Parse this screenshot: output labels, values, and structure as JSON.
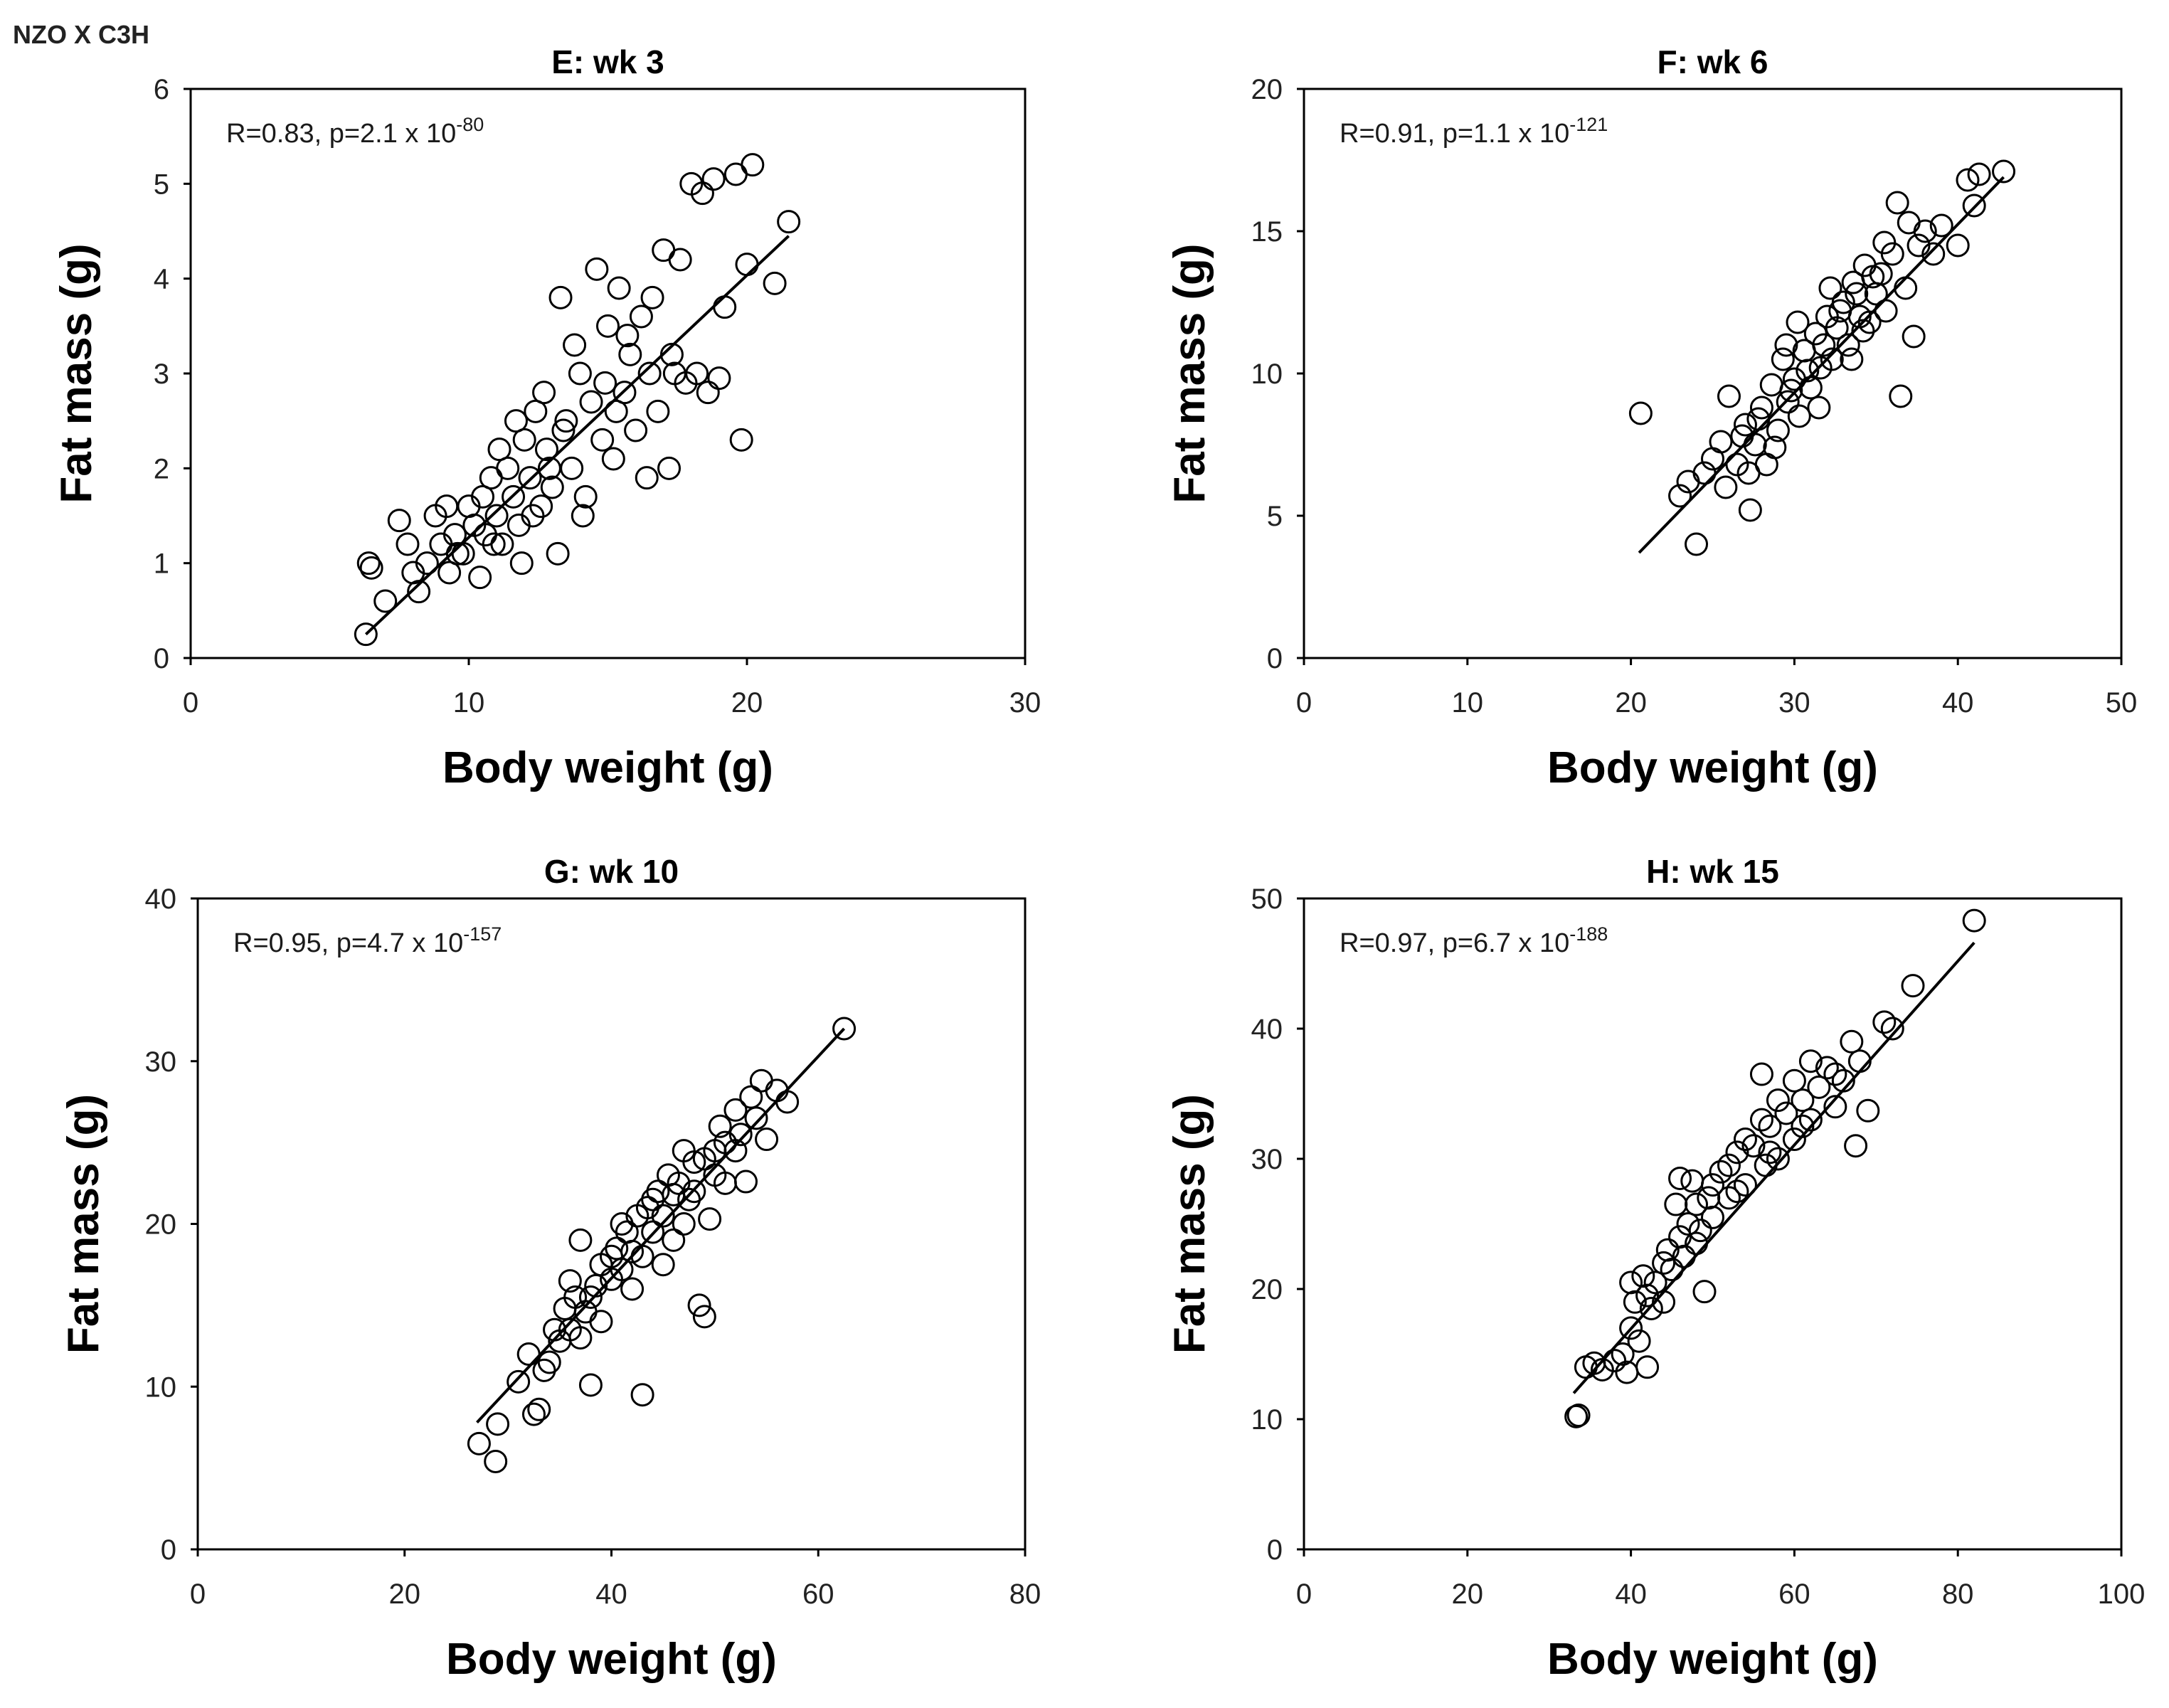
{
  "figure": {
    "label": "NZO X C3H"
  },
  "chart_data": [
    {
      "type": "scatter",
      "panel_id": "E",
      "title": "E: wk 3",
      "xlabel": "Body weight (g)",
      "ylabel": "Fat mass (g)",
      "xlim": [
        0,
        30
      ],
      "ylim": [
        0,
        6
      ],
      "xticks": [
        0,
        10,
        20,
        30
      ],
      "yticks": [
        0,
        1,
        2,
        3,
        4,
        5,
        6
      ],
      "annotation": {
        "prefix": "R=0.83, p=2.1 x 10",
        "exponent": "-80"
      },
      "fit_line": {
        "x": [
          6.3,
          21.5
        ],
        "y": [
          0.25,
          4.45
        ]
      },
      "points": [
        [
          6.3,
          0.25
        ],
        [
          6.4,
          1.0
        ],
        [
          6.5,
          0.95
        ],
        [
          7.0,
          0.6
        ],
        [
          7.5,
          1.45
        ],
        [
          7.8,
          1.2
        ],
        [
          8.2,
          0.7
        ],
        [
          8.5,
          1.0
        ],
        [
          8.8,
          1.5
        ],
        [
          9.0,
          1.2
        ],
        [
          9.3,
          0.9
        ],
        [
          9.5,
          1.3
        ],
        [
          9.8,
          1.1
        ],
        [
          10.0,
          1.6
        ],
        [
          10.2,
          1.4
        ],
        [
          10.4,
          0.85
        ],
        [
          10.6,
          1.3
        ],
        [
          10.8,
          1.9
        ],
        [
          11.0,
          1.5
        ],
        [
          11.2,
          1.2
        ],
        [
          11.4,
          2.0
        ],
        [
          11.6,
          1.7
        ],
        [
          11.8,
          1.4
        ],
        [
          12.0,
          2.3
        ],
        [
          12.2,
          1.9
        ],
        [
          12.4,
          2.6
        ],
        [
          12.6,
          1.6
        ],
        [
          12.8,
          2.2
        ],
        [
          13.0,
          1.8
        ],
        [
          13.2,
          1.1
        ],
        [
          13.3,
          3.8
        ],
        [
          13.5,
          2.5
        ],
        [
          13.7,
          2.0
        ],
        [
          14.0,
          3.0
        ],
        [
          14.2,
          1.7
        ],
        [
          14.4,
          2.7
        ],
        [
          14.6,
          4.1
        ],
        [
          14.8,
          2.3
        ],
        [
          15.0,
          3.5
        ],
        [
          15.2,
          2.1
        ],
        [
          15.4,
          3.9
        ],
        [
          15.6,
          2.8
        ],
        [
          15.8,
          3.2
        ],
        [
          16.0,
          2.4
        ],
        [
          16.2,
          3.6
        ],
        [
          16.4,
          1.9
        ],
        [
          16.6,
          3.8
        ],
        [
          16.8,
          2.6
        ],
        [
          17.0,
          4.3
        ],
        [
          17.2,
          2.0
        ],
        [
          17.4,
          3.0
        ],
        [
          17.6,
          4.2
        ],
        [
          17.8,
          2.9
        ],
        [
          18.0,
          5.0
        ],
        [
          18.2,
          3.0
        ],
        [
          18.4,
          4.9
        ],
        [
          18.6,
          2.8
        ],
        [
          18.8,
          5.05
        ],
        [
          19.0,
          2.95
        ],
        [
          19.2,
          3.7
        ],
        [
          19.6,
          5.1
        ],
        [
          19.8,
          2.3
        ],
        [
          20.0,
          4.15
        ],
        [
          20.2,
          5.2
        ],
        [
          21.0,
          3.95
        ],
        [
          21.5,
          4.6
        ],
        [
          9.6,
          1.1
        ],
        [
          10.5,
          1.7
        ],
        [
          11.1,
          2.2
        ],
        [
          11.9,
          1.0
        ],
        [
          12.3,
          1.5
        ],
        [
          12.7,
          2.8
        ],
        [
          13.4,
          2.4
        ],
        [
          14.1,
          1.5
        ],
        [
          14.9,
          2.9
        ],
        [
          15.7,
          3.4
        ],
        [
          16.5,
          3.0
        ],
        [
          17.3,
          3.2
        ],
        [
          8.0,
          0.9
        ],
        [
          9.2,
          1.6
        ],
        [
          10.9,
          1.2
        ],
        [
          11.7,
          2.5
        ],
        [
          12.9,
          2.0
        ],
        [
          13.8,
          3.3
        ],
        [
          15.3,
          2.6
        ]
      ]
    },
    {
      "type": "scatter",
      "panel_id": "F",
      "title": "F: wk 6",
      "xlabel": "Body weight (g)",
      "ylabel": "Fat mass (g)",
      "xlim": [
        0,
        50
      ],
      "ylim": [
        0,
        20
      ],
      "xticks": [
        0,
        10,
        20,
        30,
        40,
        50
      ],
      "yticks": [
        0,
        5,
        10,
        15,
        20
      ],
      "annotation": {
        "prefix": "R=0.91, p=1.1 x 10",
        "exponent": "-121"
      },
      "fit_line": {
        "x": [
          20.5,
          42.8
        ],
        "y": [
          3.7,
          16.9
        ]
      },
      "points": [
        [
          20.6,
          8.6
        ],
        [
          23.0,
          5.7
        ],
        [
          23.5,
          6.2
        ],
        [
          24.0,
          4.0
        ],
        [
          24.5,
          6.5
        ],
        [
          25.0,
          7.0
        ],
        [
          25.5,
          7.6
        ],
        [
          26.0,
          9.2
        ],
        [
          26.5,
          6.8
        ],
        [
          27.0,
          8.2
        ],
        [
          27.3,
          5.2
        ],
        [
          27.6,
          7.5
        ],
        [
          28.0,
          8.8
        ],
        [
          28.3,
          6.8
        ],
        [
          28.6,
          9.6
        ],
        [
          29.0,
          8.0
        ],
        [
          29.3,
          10.5
        ],
        [
          29.6,
          9.0
        ],
        [
          30.0,
          9.8
        ],
        [
          30.3,
          8.5
        ],
        [
          30.6,
          10.8
        ],
        [
          31.0,
          9.5
        ],
        [
          31.3,
          11.4
        ],
        [
          31.6,
          10.2
        ],
        [
          32.0,
          12.0
        ],
        [
          32.3,
          10.5
        ],
        [
          32.6,
          11.6
        ],
        [
          33.0,
          12.5
        ],
        [
          33.3,
          11.0
        ],
        [
          33.6,
          13.2
        ],
        [
          34.0,
          12.0
        ],
        [
          34.3,
          13.8
        ],
        [
          34.6,
          11.8
        ],
        [
          35.0,
          12.8
        ],
        [
          35.3,
          13.5
        ],
        [
          35.6,
          12.2
        ],
        [
          36.0,
          14.2
        ],
        [
          36.3,
          16.0
        ],
        [
          36.5,
          9.2
        ],
        [
          36.8,
          13.0
        ],
        [
          37.0,
          15.3
        ],
        [
          37.3,
          11.3
        ],
        [
          37.6,
          14.5
        ],
        [
          38.0,
          15.0
        ],
        [
          38.5,
          14.2
        ],
        [
          39.0,
          15.2
        ],
        [
          40.0,
          14.5
        ],
        [
          40.6,
          16.8
        ],
        [
          41.0,
          15.9
        ],
        [
          41.3,
          17.0
        ],
        [
          42.8,
          17.1
        ],
        [
          28.8,
          7.4
        ],
        [
          29.8,
          9.4
        ],
        [
          30.8,
          10.1
        ],
        [
          31.8,
          11.0
        ],
        [
          32.8,
          12.2
        ],
        [
          33.8,
          12.8
        ],
        [
          34.8,
          13.4
        ],
        [
          26.8,
          7.8
        ],
        [
          27.8,
          8.4
        ],
        [
          29.5,
          11.0
        ],
        [
          31.5,
          8.8
        ],
        [
          33.5,
          10.5
        ],
        [
          35.5,
          14.6
        ],
        [
          25.8,
          6.0
        ],
        [
          27.2,
          6.5
        ],
        [
          30.2,
          11.8
        ],
        [
          32.2,
          13.0
        ],
        [
          34.2,
          11.5
        ]
      ]
    },
    {
      "type": "scatter",
      "panel_id": "G",
      "title": "G: wk 10",
      "xlabel": "Body weight (g)",
      "ylabel": "Fat mass (g)",
      "xlim": [
        0,
        80
      ],
      "ylim": [
        0,
        40
      ],
      "xticks": [
        0,
        20,
        40,
        60,
        80
      ],
      "yticks": [
        0,
        10,
        20,
        30,
        40
      ],
      "annotation": {
        "prefix": "R=0.95, p=4.7 x 10",
        "exponent": "-157"
      },
      "fit_line": {
        "x": [
          27.0,
          62.5
        ],
        "y": [
          7.8,
          32.0
        ]
      },
      "points": [
        [
          27.2,
          6.5
        ],
        [
          28.8,
          5.4
        ],
        [
          29.0,
          7.7
        ],
        [
          31.0,
          10.3
        ],
        [
          32.0,
          12.0
        ],
        [
          32.5,
          8.3
        ],
        [
          33.0,
          8.6
        ],
        [
          33.5,
          11.0
        ],
        [
          34.5,
          13.5
        ],
        [
          35.0,
          12.8
        ],
        [
          35.5,
          14.8
        ],
        [
          36.0,
          13.5
        ],
        [
          36.5,
          15.5
        ],
        [
          37.0,
          19.0
        ],
        [
          37.5,
          14.6
        ],
        [
          38.0,
          10.1
        ],
        [
          38.5,
          16.2
        ],
        [
          39.0,
          17.5
        ],
        [
          40.0,
          16.6
        ],
        [
          40.5,
          18.5
        ],
        [
          41.0,
          17.2
        ],
        [
          41.5,
          19.5
        ],
        [
          42.0,
          18.3
        ],
        [
          42.5,
          20.5
        ],
        [
          43.0,
          9.5
        ],
        [
          43.5,
          21.0
        ],
        [
          44.0,
          19.5
        ],
        [
          44.5,
          22.0
        ],
        [
          45.0,
          20.5
        ],
        [
          45.5,
          23.0
        ],
        [
          46.0,
          21.8
        ],
        [
          46.5,
          22.5
        ],
        [
          47.0,
          24.5
        ],
        [
          47.5,
          21.5
        ],
        [
          48.0,
          23.8
        ],
        [
          48.5,
          15.0
        ],
        [
          49.0,
          14.3
        ],
        [
          49.5,
          20.3
        ],
        [
          50.0,
          24.5
        ],
        [
          50.5,
          26.0
        ],
        [
          51.0,
          25.0
        ],
        [
          52.0,
          27.0
        ],
        [
          52.5,
          25.5
        ],
        [
          53.0,
          22.6
        ],
        [
          53.5,
          27.8
        ],
        [
          54.0,
          26.5
        ],
        [
          54.5,
          28.8
        ],
        [
          55.0,
          25.2
        ],
        [
          56.0,
          28.2
        ],
        [
          57.0,
          27.5
        ],
        [
          62.5,
          32.0
        ],
        [
          38.0,
          15.5
        ],
        [
          40.0,
          18.0
        ],
        [
          42.0,
          16.0
        ],
        [
          44.0,
          21.5
        ],
        [
          46.0,
          19.0
        ],
        [
          48.0,
          22.0
        ],
        [
          50.0,
          23.0
        ],
        [
          52.0,
          24.5
        ],
        [
          36.0,
          16.5
        ],
        [
          39.0,
          14.0
        ],
        [
          41.0,
          20.0
        ],
        [
          43.0,
          18.0
        ],
        [
          45.0,
          17.5
        ],
        [
          47.0,
          20.0
        ],
        [
          49.0,
          24.0
        ],
        [
          51.0,
          22.5
        ],
        [
          34.0,
          11.5
        ],
        [
          37.0,
          13.0
        ]
      ]
    },
    {
      "type": "scatter",
      "panel_id": "H",
      "title": "H: wk 15",
      "xlabel": "Body weight (g)",
      "ylabel": "Fat mass (g)",
      "xlim": [
        0,
        100
      ],
      "ylim": [
        0,
        50
      ],
      "xticks": [
        0,
        20,
        40,
        60,
        80,
        100
      ],
      "yticks": [
        0,
        10,
        20,
        30,
        40,
        50
      ],
      "annotation": {
        "prefix": "R=0.97, p=6.7 x 10",
        "exponent": "-188"
      },
      "fit_line": {
        "x": [
          33.0,
          82.0
        ],
        "y": [
          12.0,
          46.6
        ]
      },
      "points": [
        [
          33.3,
          10.2
        ],
        [
          33.6,
          10.3
        ],
        [
          34.5,
          14.0
        ],
        [
          35.5,
          14.3
        ],
        [
          36.5,
          13.8
        ],
        [
          38.0,
          14.5
        ],
        [
          39.0,
          15.0
        ],
        [
          39.5,
          13.6
        ],
        [
          40.0,
          17.0
        ],
        [
          40.5,
          19.0
        ],
        [
          41.0,
          16.0
        ],
        [
          41.5,
          21.0
        ],
        [
          42.0,
          14.0
        ],
        [
          42.5,
          18.5
        ],
        [
          43.0,
          20.5
        ],
        [
          44.0,
          19.0
        ],
        [
          44.5,
          23.0
        ],
        [
          45.0,
          21.5
        ],
        [
          45.5,
          26.5
        ],
        [
          46.0,
          28.5
        ],
        [
          46.5,
          22.5
        ],
        [
          47.0,
          25.0
        ],
        [
          47.5,
          28.3
        ],
        [
          48.0,
          23.5
        ],
        [
          48.5,
          24.5
        ],
        [
          49.0,
          19.8
        ],
        [
          49.5,
          27.0
        ],
        [
          50.0,
          25.5
        ],
        [
          51.0,
          29.0
        ],
        [
          52.0,
          27.0
        ],
        [
          53.0,
          30.5
        ],
        [
          54.0,
          28.0
        ],
        [
          55.0,
          31.0
        ],
        [
          56.0,
          36.5
        ],
        [
          56.5,
          29.5
        ],
        [
          57.0,
          32.5
        ],
        [
          58.0,
          30.0
        ],
        [
          59.0,
          33.5
        ],
        [
          60.0,
          31.5
        ],
        [
          61.0,
          34.5
        ],
        [
          62.0,
          33.0
        ],
        [
          63.0,
          35.5
        ],
        [
          64.0,
          37.0
        ],
        [
          65.0,
          34.0
        ],
        [
          66.0,
          36.0
        ],
        [
          67.0,
          39.0
        ],
        [
          67.5,
          31.0
        ],
        [
          68.0,
          37.5
        ],
        [
          69.0,
          33.7
        ],
        [
          71.0,
          40.5
        ],
        [
          72.0,
          40.0
        ],
        [
          74.5,
          43.3
        ],
        [
          82.0,
          48.3
        ],
        [
          44.0,
          22.0
        ],
        [
          46.0,
          24.0
        ],
        [
          48.0,
          26.5
        ],
        [
          50.0,
          28.0
        ],
        [
          52.0,
          29.5
        ],
        [
          54.0,
          31.5
        ],
        [
          56.0,
          33.0
        ],
        [
          58.0,
          34.5
        ],
        [
          60.0,
          36.0
        ],
        [
          62.0,
          37.5
        ],
        [
          42.0,
          19.5
        ],
        [
          40.0,
          20.5
        ],
        [
          53.0,
          27.5
        ],
        [
          57.0,
          30.5
        ],
        [
          61.0,
          32.5
        ],
        [
          65.0,
          36.5
        ]
      ]
    }
  ]
}
